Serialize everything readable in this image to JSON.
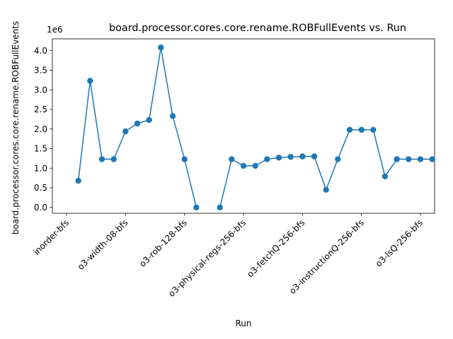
{
  "chart_data": {
    "type": "line",
    "title": "board.processor.cores.core.rename.ROBFullEvents vs. Run",
    "xlabel": "Run",
    "ylabel": "board.processor.cores.core.rename.ROBFullEvents",
    "y_offset_label": "1e6",
    "y_scale": 1000000,
    "y_ticks": [
      0.0,
      0.5,
      1.0,
      1.5,
      2.0,
      2.5,
      3.0,
      3.5,
      4.0
    ],
    "ylim": [
      -150000,
      4300000
    ],
    "xlim": [
      -1.2,
      31.2
    ],
    "x_tick_labels": [
      {
        "pos": 0,
        "label": "inorder-bfs"
      },
      {
        "pos": 5,
        "label": "o3-width-08-bfs"
      },
      {
        "pos": 10,
        "label": "o3-rob-128-bfs"
      },
      {
        "pos": 15,
        "label": "o3-physical-regs-256-bfs"
      },
      {
        "pos": 20,
        "label": "o3-fetchQ-256-bfs"
      },
      {
        "pos": 25,
        "label": "o3-instructionQ-256-bfs"
      },
      {
        "pos": 30,
        "label": "o3-lsQ-256-bfs"
      }
    ],
    "series": [
      {
        "color": "#1f77b4",
        "marker": "circle",
        "points": [
          [
            1,
            680000
          ],
          [
            2,
            3230000
          ],
          [
            3,
            1230000
          ],
          [
            4,
            1230000
          ],
          [
            5,
            1940000
          ],
          [
            6,
            2140000
          ],
          [
            7,
            2230000
          ],
          [
            8,
            4080000
          ],
          [
            9,
            2330000
          ],
          [
            10,
            1230000
          ],
          [
            11,
            0
          ],
          [
            13,
            0
          ],
          [
            14,
            1230000
          ],
          [
            15,
            1060000
          ],
          [
            16,
            1060000
          ],
          [
            17,
            1230000
          ],
          [
            18,
            1270000
          ],
          [
            19,
            1290000
          ],
          [
            20,
            1300000
          ],
          [
            21,
            1300000
          ],
          [
            22,
            450000
          ],
          [
            23,
            1230000
          ],
          [
            24,
            1980000
          ],
          [
            25,
            1980000
          ],
          [
            26,
            1980000
          ],
          [
            27,
            790000
          ],
          [
            28,
            1230000
          ],
          [
            29,
            1230000
          ],
          [
            30,
            1230000
          ],
          [
            31,
            1230000
          ]
        ]
      }
    ],
    "grid": false,
    "legend": "none"
  }
}
